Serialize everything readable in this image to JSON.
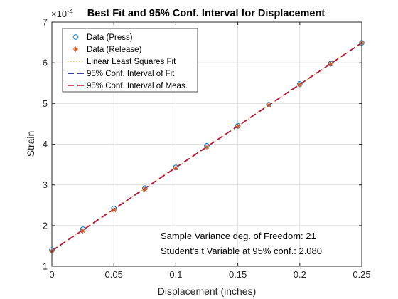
{
  "chart_data": {
    "type": "line",
    "title": "Best Fit and 95% Conf. Interval for Displacement",
    "xlabel": "Displacement (inches)",
    "ylabel": "Strain",
    "y_exponent_label": "×10",
    "y_exponent_power": "-4",
    "xlim": [
      0,
      0.25
    ],
    "ylim": [
      1,
      7
    ],
    "xticks": [
      0,
      0.05,
      0.1,
      0.15,
      0.2,
      0.25
    ],
    "xtick_labels": [
      "0",
      "0.05",
      "0.1",
      "0.15",
      "0.2",
      "0.25"
    ],
    "yticks": [
      1,
      2,
      3,
      4,
      5,
      6,
      7
    ],
    "ytick_labels": [
      "1",
      "2",
      "3",
      "4",
      "5",
      "6",
      "7"
    ],
    "grid": true,
    "legend_position": "top-left",
    "series": [
      {
        "name": "Data (Press)",
        "marker": "circle",
        "color": "#0072BD",
        "x": [
          0,
          0.025,
          0.05,
          0.075,
          0.1,
          0.125,
          0.15,
          0.175,
          0.2,
          0.225,
          0.25
        ],
        "y": [
          1.4,
          1.91,
          2.42,
          2.92,
          3.43,
          3.96,
          4.45,
          4.97,
          5.48,
          5.98,
          6.49
        ]
      },
      {
        "name": "Data (Release)",
        "marker": "asterisk",
        "color": "#D95319",
        "x": [
          0,
          0.025,
          0.05,
          0.075,
          0.1,
          0.125,
          0.15,
          0.175,
          0.2,
          0.225,
          0.25
        ],
        "y": [
          1.37,
          1.87,
          2.38,
          2.89,
          3.41,
          3.93,
          4.44,
          4.96,
          5.46,
          5.97,
          6.49
        ]
      },
      {
        "name": "Linear Least Squares Fit",
        "style": "dotted",
        "color": "#EDB120",
        "x": [
          0,
          0.25
        ],
        "y": [
          1.38,
          6.49
        ]
      },
      {
        "name": "95% Conf. Interval of Fit",
        "style": "dashed",
        "color": "#000080",
        "x": [
          0,
          0.25
        ],
        "y": [
          1.38,
          6.49
        ]
      },
      {
        "name": "95% Conf. Interval of Meas.",
        "style": "dashed",
        "color": "#C8102E",
        "x": [
          0,
          0.25
        ],
        "y": [
          1.38,
          6.49
        ]
      }
    ],
    "annotations": [
      "Sample Variance deg. of Freedom: 21",
      "Student's t Variable at 95% conf.: 2.080"
    ]
  }
}
